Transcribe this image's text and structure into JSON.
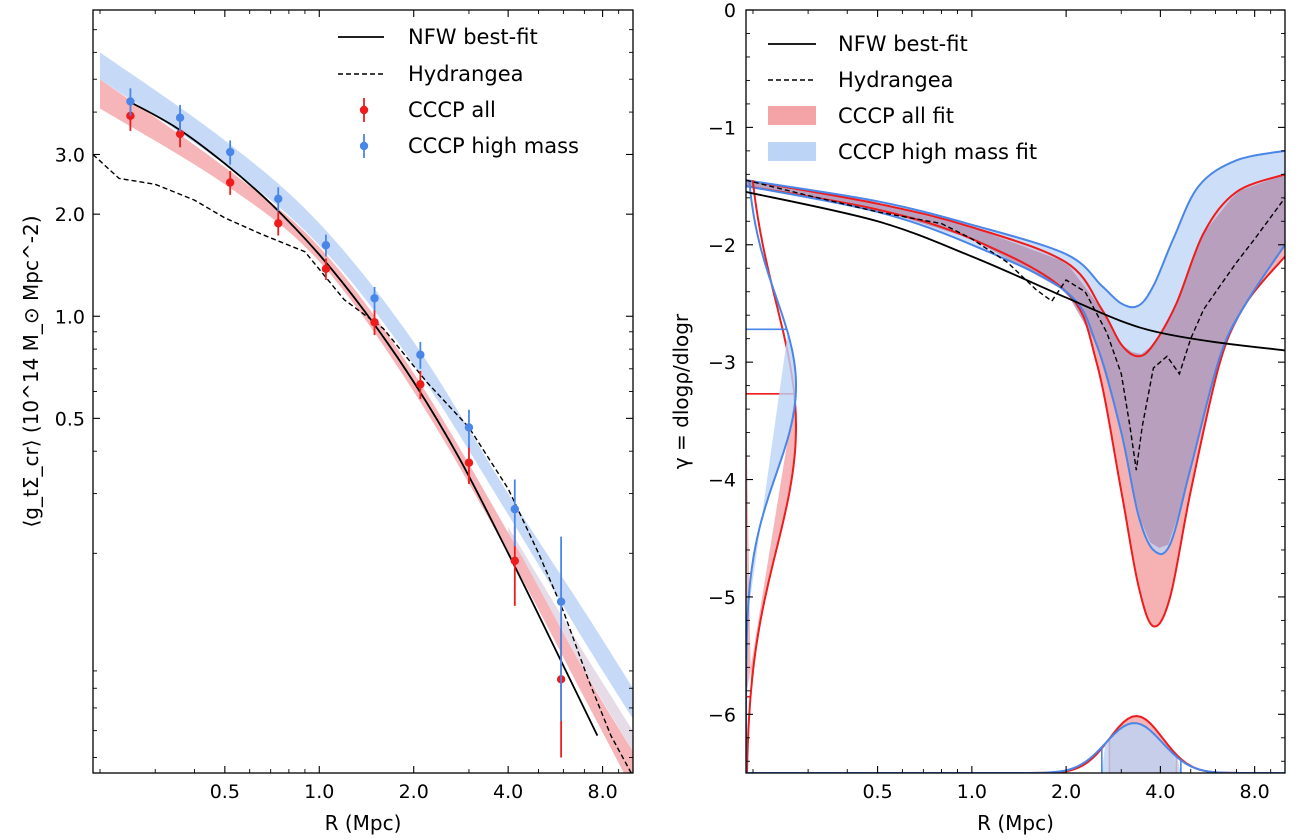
{
  "chart_data": [
    {
      "type": "scatter",
      "panel": "left",
      "x_scale": "log",
      "y_scale": "log",
      "xlim": [
        0.19,
        10.0
      ],
      "ylim": [
        0.045,
        8.0
      ],
      "xlabel": "R (Mpc)",
      "ylabel": "⟨g_tΣ_cr⟩ (10^14 M_⊙ Mpc^-2)",
      "x_tick_labels": [
        "0.5",
        "1.0",
        "2.0",
        "4.0",
        "8.0"
      ],
      "x_ticks": [
        0.5,
        1.0,
        2.0,
        4.0,
        8.0
      ],
      "y_tick_labels": [
        "0.5",
        "1.0",
        "2.0",
        "3.0"
      ],
      "y_ticks": [
        0.5,
        1.0,
        2.0,
        3.0
      ],
      "legend": {
        "placement": "upper right",
        "entries": [
          "NFW best-fit",
          "Hydrangea",
          "CCCP all",
          "CCCP high mass"
        ]
      },
      "colors": {
        "red": "#ee1c1c",
        "blue": "#4a86e8",
        "red_band": "#f4a3a6",
        "blue_band": "#bcd4f6",
        "overlap": "#b69ab9"
      },
      "series": [
        {
          "name": "NFW best-fit",
          "style": "solid",
          "x": [
            0.25,
            0.35,
            0.5,
            0.7,
            1.0,
            1.4,
            2.0,
            2.8,
            4.0,
            5.5,
            7.7
          ],
          "y": [
            4.28,
            3.6,
            2.82,
            2.15,
            1.52,
            1.03,
            0.64,
            0.38,
            0.2,
            0.11,
            0.058
          ]
        },
        {
          "name": "Hydrangea",
          "style": "dashed",
          "x": [
            0.19,
            0.23,
            0.3,
            0.4,
            0.5,
            0.65,
            0.9,
            1.2,
            1.6,
            2.2,
            3.0,
            4.0,
            5.0,
            6.0,
            7.2,
            8.5,
            10.0
          ],
          "y": [
            3.0,
            2.55,
            2.45,
            2.2,
            1.95,
            1.75,
            1.55,
            1.12,
            0.92,
            0.64,
            0.47,
            0.31,
            0.2,
            0.135,
            0.085,
            0.058,
            0.044
          ]
        },
        {
          "name": "CCCP all",
          "x": [
            0.25,
            0.36,
            0.52,
            0.74,
            1.05,
            1.5,
            2.1,
            3.0,
            4.2,
            5.9
          ],
          "y": [
            3.9,
            3.45,
            2.48,
            1.88,
            1.38,
            0.96,
            0.63,
            0.37,
            0.19,
            0.085
          ],
          "yerr": [
            [
              0.38,
              0.3,
              0.2,
              0.15,
              0.1,
              0.08,
              0.06,
              0.05,
              0.05,
              0.035
            ],
            [
              0.38,
              0.3,
              0.2,
              0.15,
              0.1,
              0.08,
              0.06,
              0.05,
              0.05,
              0.035
            ]
          ]
        },
        {
          "name": "CCCP high mass",
          "x": [
            0.25,
            0.36,
            0.52,
            0.74,
            1.05,
            1.5,
            2.1,
            3.0,
            4.2,
            5.9
          ],
          "y": [
            4.3,
            3.85,
            3.05,
            2.22,
            1.62,
            1.13,
            0.77,
            0.47,
            0.27,
            0.144
          ],
          "yerr": [
            [
              0.4,
              0.35,
              0.25,
              0.18,
              0.12,
              0.09,
              0.07,
              0.06,
              0.06,
              0.08
            ],
            [
              0.4,
              0.35,
              0.25,
              0.18,
              0.12,
              0.09,
              0.07,
              0.06,
              0.06,
              0.08
            ]
          ]
        }
      ],
      "bands": [
        {
          "name": "CCCP all",
          "x": [
            0.2,
            0.5,
            1.0,
            2.0,
            4.0,
            7.0,
            10.0
          ],
          "lo": [
            4.1,
            2.45,
            1.45,
            0.6,
            0.2,
            0.075,
            0.04
          ],
          "hi": [
            5.0,
            2.75,
            1.6,
            0.68,
            0.23,
            0.09,
            0.052
          ]
        },
        {
          "name": "CCCP high mass",
          "x": [
            0.2,
            0.5,
            1.0,
            2.0,
            4.0,
            7.0,
            10.0
          ],
          "lo": [
            5.0,
            2.8,
            1.62,
            0.72,
            0.26,
            0.11,
            0.065
          ],
          "hi": [
            6.0,
            3.3,
            1.88,
            0.84,
            0.3,
            0.135,
            0.08
          ]
        }
      ]
    },
    {
      "type": "line",
      "panel": "right",
      "x_scale": "log",
      "xlim": [
        0.19,
        10.0
      ],
      "ylim": [
        -6.5,
        0
      ],
      "xlabel": "R (Mpc)",
      "ylabel": "γ = dlogρ/dlogr",
      "x_tick_labels": [
        "0.5",
        "1.0",
        "2.0",
        "4.0",
        "8.0"
      ],
      "x_ticks": [
        0.5,
        1.0,
        2.0,
        4.0,
        8.0
      ],
      "y_tick_labels": [
        "−6",
        "−5",
        "−4",
        "−3",
        "−2",
        "−1",
        "0"
      ],
      "y_ticks": [
        -6,
        -5,
        -4,
        -3,
        -2,
        -1,
        0
      ],
      "legend": {
        "placement": "upper right",
        "entries": [
          "NFW best-fit",
          "Hydrangea",
          "CCCP all fit",
          "CCCP high mass fit"
        ]
      },
      "series": [
        {
          "name": "NFW best-fit",
          "style": "solid",
          "x": [
            0.19,
            0.5,
            1.0,
            2.0,
            3.0,
            4.0,
            6.0,
            10.0
          ],
          "y": [
            -1.55,
            -1.8,
            -2.1,
            -2.45,
            -2.65,
            -2.75,
            -2.83,
            -2.9
          ]
        },
        {
          "name": "Hydrangea",
          "style": "dashed",
          "x": [
            0.19,
            0.3,
            0.5,
            0.8,
            1.0,
            1.3,
            1.6,
            1.8,
            2.0,
            2.3,
            2.7,
            3.0,
            3.2,
            3.35,
            3.5,
            3.8,
            4.2,
            4.6,
            5.0,
            5.5,
            6.2,
            7.0,
            8.0,
            10.0
          ],
          "y": [
            -1.45,
            -1.58,
            -1.72,
            -1.82,
            -1.95,
            -2.15,
            -2.38,
            -2.48,
            -2.3,
            -2.4,
            -2.75,
            -3.1,
            -3.55,
            -3.92,
            -3.55,
            -3.05,
            -2.95,
            -3.1,
            -2.8,
            -2.55,
            -2.35,
            -2.15,
            -1.95,
            -1.6
          ]
        },
        {
          "name": "CCCP all fit",
          "x_upper": [
            0.19,
            0.5,
            1.0,
            2.0,
            2.6,
            3.0,
            3.4,
            3.8,
            4.5,
            5.5,
            7.0,
            10.0
          ],
          "upper": [
            -1.45,
            -1.65,
            -1.85,
            -2.15,
            -2.55,
            -2.85,
            -2.95,
            -2.85,
            -2.5,
            -1.9,
            -1.55,
            -1.4
          ],
          "x_lower": [
            0.19,
            0.5,
            1.0,
            2.0,
            2.5,
            3.0,
            3.4,
            3.8,
            4.3,
            5.0,
            6.2,
            7.5,
            10.0
          ],
          "lower": [
            -1.5,
            -1.7,
            -1.95,
            -2.4,
            -3.0,
            -4.1,
            -4.9,
            -5.25,
            -5.0,
            -4.1,
            -3.0,
            -2.5,
            -2.1
          ]
        },
        {
          "name": "CCCP high mass fit",
          "x_upper": [
            0.19,
            0.5,
            1.0,
            2.0,
            2.6,
            3.0,
            3.4,
            3.8,
            4.4,
            5.3,
            7.0,
            10.0
          ],
          "upper": [
            -1.45,
            -1.63,
            -1.83,
            -2.08,
            -2.35,
            -2.5,
            -2.52,
            -2.35,
            -1.95,
            -1.5,
            -1.28,
            -1.2
          ],
          "x_lower": [
            0.19,
            0.5,
            1.0,
            2.0,
            2.5,
            3.0,
            3.4,
            3.8,
            4.3,
            5.0,
            6.2,
            7.5,
            10.0
          ],
          "lower": [
            -1.5,
            -1.72,
            -2.0,
            -2.4,
            -2.85,
            -3.6,
            -4.3,
            -4.6,
            -4.55,
            -3.9,
            -2.95,
            -2.5,
            -2.0
          ]
        }
      ]
    }
  ]
}
